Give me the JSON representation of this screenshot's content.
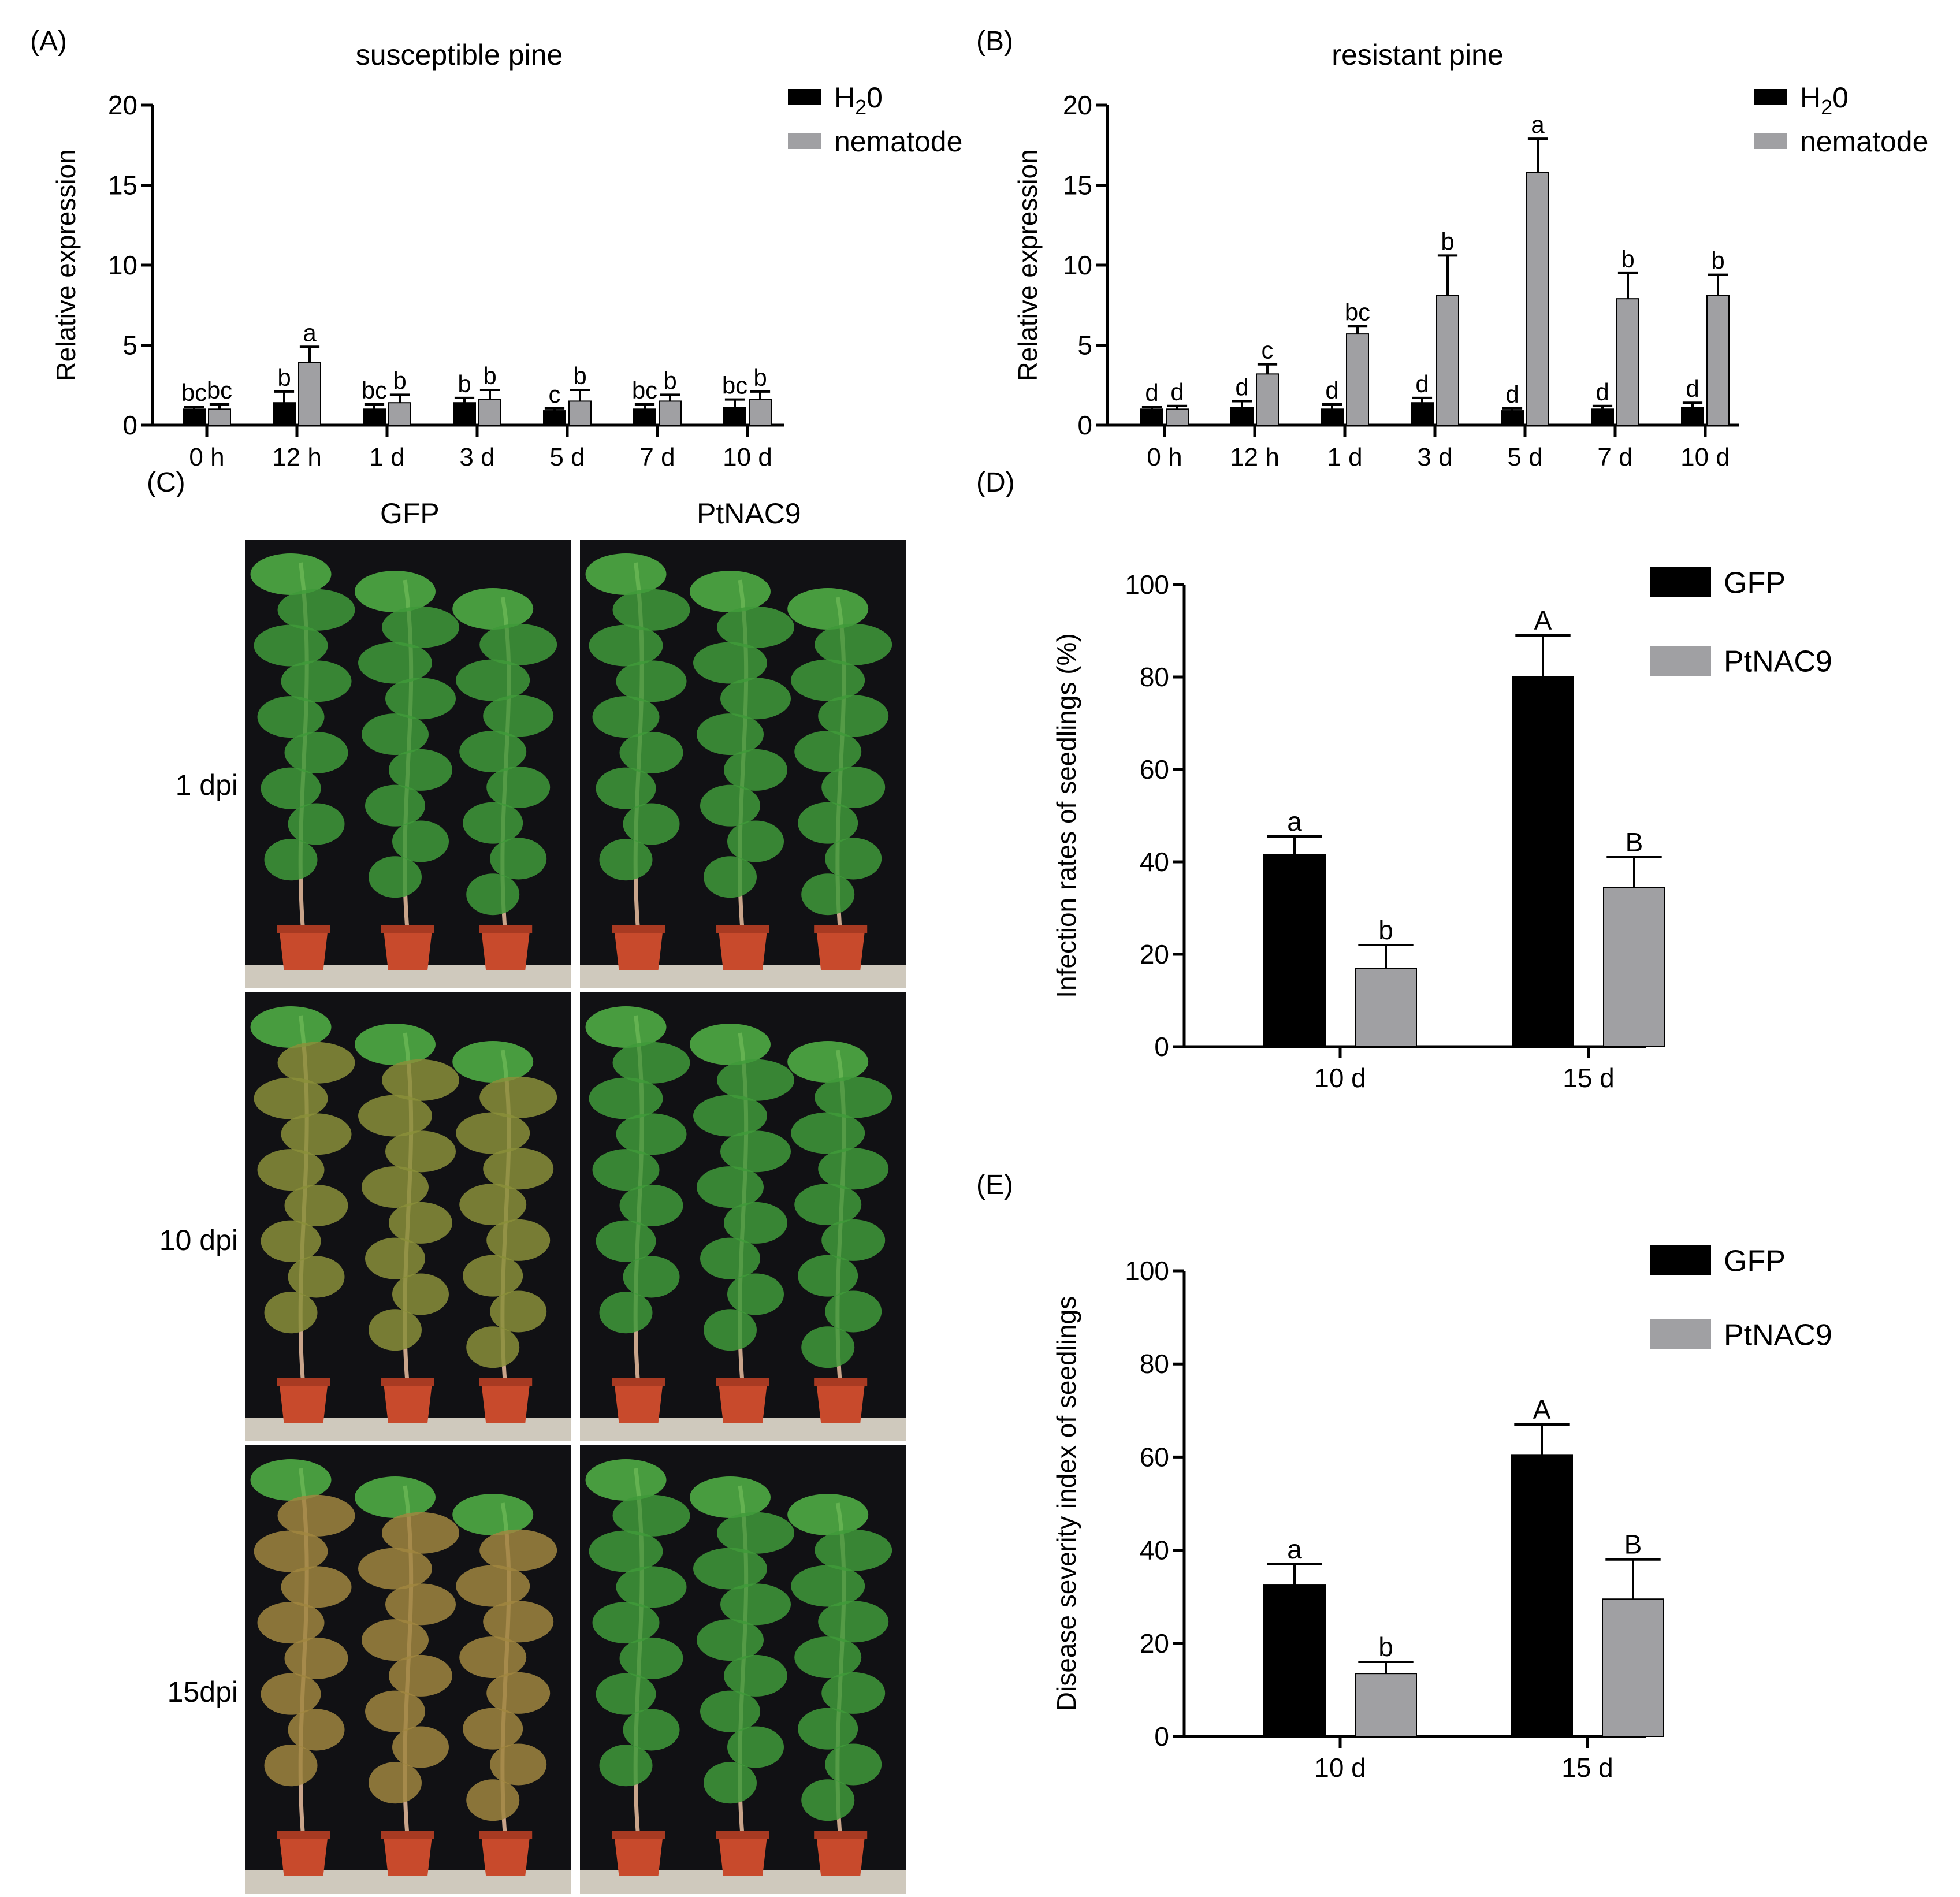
{
  "colors": {
    "black_bar": "#000000",
    "gray_bar": "#a0a0a3",
    "background": "#ffffff"
  },
  "panels": {
    "A": "(A)",
    "B": "(B)",
    "C": "(C)",
    "D": "(D)",
    "E": "(E)"
  },
  "photos": {
    "columns": [
      "GFP",
      "PtNAC9"
    ],
    "rows": [
      "1 dpi",
      "10 dpi",
      "15dpi"
    ],
    "rows_needle_tint": [
      [
        "#3f9a3a",
        "#3f9a3a"
      ],
      [
        "#8a8f3a",
        "#3f9a3a"
      ],
      [
        "#a08640",
        "#3f9a3a"
      ]
    ]
  },
  "chart_data": [
    {
      "id": "A",
      "type": "bar",
      "title": "susceptible pine",
      "xlabel": "",
      "ylabel": "Relative expression",
      "ylim": [
        0,
        20
      ],
      "yticks": [
        "0",
        "5",
        "10",
        "15",
        "20"
      ],
      "categories": [
        "0 h",
        "12 h",
        "1 d",
        "3 d",
        "5 d",
        "7 d",
        "10 d"
      ],
      "legend": {
        "placement": "top-right"
      },
      "series": [
        {
          "name": "H20",
          "name_main": "H",
          "name_sub": "2",
          "name_tail": "0",
          "color": "#000000",
          "values": [
            1.0,
            1.4,
            1.0,
            1.4,
            0.9,
            1.0,
            1.1
          ],
          "errors": [
            0.15,
            0.7,
            0.3,
            0.3,
            0.15,
            0.3,
            0.5
          ],
          "labels": [
            "bc",
            "b",
            "bc",
            "b",
            "c",
            "bc",
            "bc"
          ]
        },
        {
          "name": "nematode",
          "color": "#a0a0a3",
          "values": [
            1.0,
            3.9,
            1.4,
            1.6,
            1.5,
            1.5,
            1.6
          ],
          "errors": [
            0.3,
            1.0,
            0.5,
            0.6,
            0.7,
            0.4,
            0.5
          ],
          "labels": [
            "bc",
            "a",
            "b",
            "b",
            "b",
            "b",
            "b"
          ]
        }
      ]
    },
    {
      "id": "B",
      "type": "bar",
      "title": "resistant pine",
      "xlabel": "",
      "ylabel": "Relative expression",
      "ylim": [
        0,
        20
      ],
      "yticks": [
        "0",
        "5",
        "10",
        "15",
        "20"
      ],
      "categories": [
        "0 h",
        "12 h",
        "1 d",
        "3 d",
        "5 d",
        "7 d",
        "10 d"
      ],
      "legend": {
        "placement": "top-right"
      },
      "series": [
        {
          "name": "H20",
          "name_main": "H",
          "name_sub": "2",
          "name_tail": "0",
          "color": "#000000",
          "values": [
            1.0,
            1.1,
            1.0,
            1.4,
            0.9,
            1.0,
            1.1
          ],
          "errors": [
            0.15,
            0.4,
            0.3,
            0.3,
            0.15,
            0.2,
            0.3
          ],
          "labels": [
            "d",
            "d",
            "d",
            "d",
            "d",
            "d",
            "d"
          ]
        },
        {
          "name": "nematode",
          "color": "#a0a0a3",
          "values": [
            1.0,
            3.2,
            5.7,
            8.1,
            15.8,
            7.9,
            8.1
          ],
          "errors": [
            0.2,
            0.6,
            0.5,
            2.5,
            2.1,
            1.6,
            1.3
          ],
          "labels": [
            "d",
            "c",
            "bc",
            "b",
            "a",
            "b",
            "b"
          ]
        }
      ]
    },
    {
      "id": "D",
      "type": "bar",
      "title": "",
      "xlabel": "",
      "ylabel": "Infection rates of seedlings (%)",
      "ylim": [
        0,
        100
      ],
      "yticks": [
        "0",
        "20",
        "40",
        "60",
        "80",
        "100"
      ],
      "categories": [
        "10 d",
        "15 d"
      ],
      "legend": {
        "placement": "top-right"
      },
      "series": [
        {
          "name": "GFP",
          "color": "#000000",
          "values": [
            41.5,
            80.0
          ],
          "errors": [
            4.0,
            9.0
          ],
          "labels": [
            "a",
            "A"
          ]
        },
        {
          "name": "PtNAC9",
          "color": "#a0a0a3",
          "values": [
            17.0,
            34.5
          ],
          "errors": [
            5.0,
            6.5
          ],
          "labels": [
            "b",
            "B"
          ]
        }
      ]
    },
    {
      "id": "E",
      "type": "bar",
      "title": "",
      "xlabel": "",
      "ylabel": "Disease severity index of seedlings",
      "ylim": [
        0,
        100
      ],
      "yticks": [
        "0",
        "20",
        "40",
        "60",
        "80",
        "100"
      ],
      "categories": [
        "10 d",
        "15 d"
      ],
      "legend": {
        "placement": "top-right"
      },
      "series": [
        {
          "name": "GFP",
          "color": "#000000",
          "values": [
            32.5,
            60.5
          ],
          "errors": [
            4.5,
            6.5
          ],
          "labels": [
            "a",
            "A"
          ]
        },
        {
          "name": "PtNAC9",
          "color": "#a0a0a3",
          "values": [
            13.5,
            29.5
          ],
          "errors": [
            2.5,
            8.5
          ],
          "labels": [
            "b",
            "B"
          ]
        }
      ]
    }
  ]
}
